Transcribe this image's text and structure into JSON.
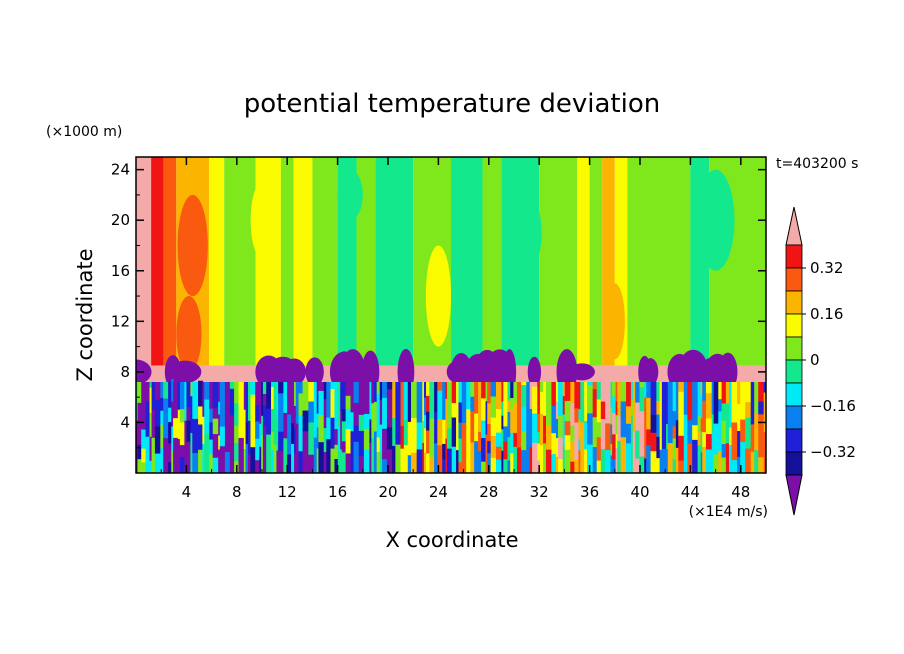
{
  "chart_data": {
    "type": "heatmap",
    "title": "potential temperature deviation",
    "xlabel": "X coordinate",
    "ylabel": "Z coordinate",
    "x_unit": "(×1E4 m/s)",
    "y_unit": "(×1000 m)",
    "time_label": "t=403200 s",
    "xlim": [
      0,
      50
    ],
    "ylim": [
      0,
      25
    ],
    "xticks": [
      "4",
      "8",
      "12",
      "16",
      "20",
      "24",
      "28",
      "32",
      "36",
      "40",
      "44",
      "48"
    ],
    "yticks": [
      "4",
      "8",
      "12",
      "16",
      "20",
      "24"
    ],
    "colorbar": {
      "levels": [
        -0.4,
        -0.32,
        -0.24,
        -0.16,
        -0.08,
        0,
        0.08,
        0.16,
        0.24,
        0.32,
        0.4
      ],
      "labels": [
        "0.32",
        "0.16",
        "0",
        "−0.16",
        "−0.32"
      ],
      "colors": [
        "#7b0fa8",
        "#14109a",
        "#2020d8",
        "#0a7ff0",
        "#00eaf6",
        "#13e98c",
        "#7fe81d",
        "#fbfb00",
        "#fbb400",
        "#fa5a10",
        "#f11414",
        "#f5aaaa"
      ]
    }
  }
}
